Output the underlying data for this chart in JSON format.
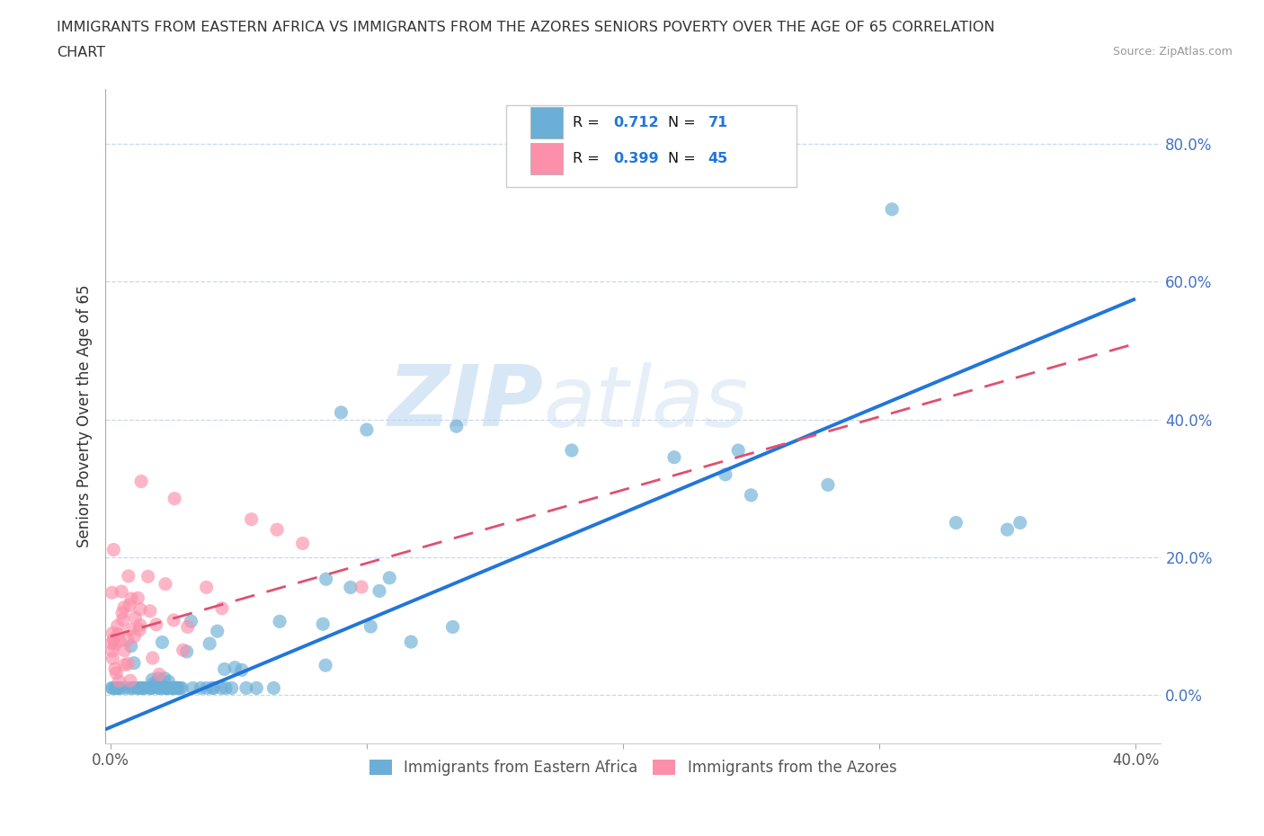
{
  "title_line1": "IMMIGRANTS FROM EASTERN AFRICA VS IMMIGRANTS FROM THE AZORES SENIORS POVERTY OVER THE AGE OF 65 CORRELATION",
  "title_line2": "CHART",
  "source": "Source: ZipAtlas.com",
  "ylabel": "Seniors Poverty Over the Age of 65",
  "xlim": [
    -0.002,
    0.41
  ],
  "ylim": [
    -0.07,
    0.88
  ],
  "xticks": [
    0.0,
    0.1,
    0.2,
    0.3,
    0.4
  ],
  "xticklabels_shown": [
    "0.0%",
    "",
    "",
    "",
    "40.0%"
  ],
  "yticks": [
    0.0,
    0.2,
    0.4,
    0.6,
    0.8
  ],
  "yticklabels": [
    "0.0%",
    "20.0%",
    "40.0%",
    "60.0%",
    "80.0%"
  ],
  "color_blue": "#6baed6",
  "color_pink": "#fc8fa9",
  "color_blue_line": "#2176d9",
  "color_pink_line": "#e05070",
  "color_ytick": "#4472c4",
  "R_blue": 0.712,
  "N_blue": 71,
  "R_pink": 0.399,
  "N_pink": 45,
  "legend_label_blue": "Immigrants from Eastern Africa",
  "legend_label_pink": "Immigrants from the Azores",
  "blue_line_x": [
    -0.002,
    0.4
  ],
  "blue_line_y": [
    -0.05,
    0.575
  ],
  "pink_line_x": [
    0.0,
    0.4
  ],
  "pink_line_y": [
    0.085,
    0.51
  ]
}
